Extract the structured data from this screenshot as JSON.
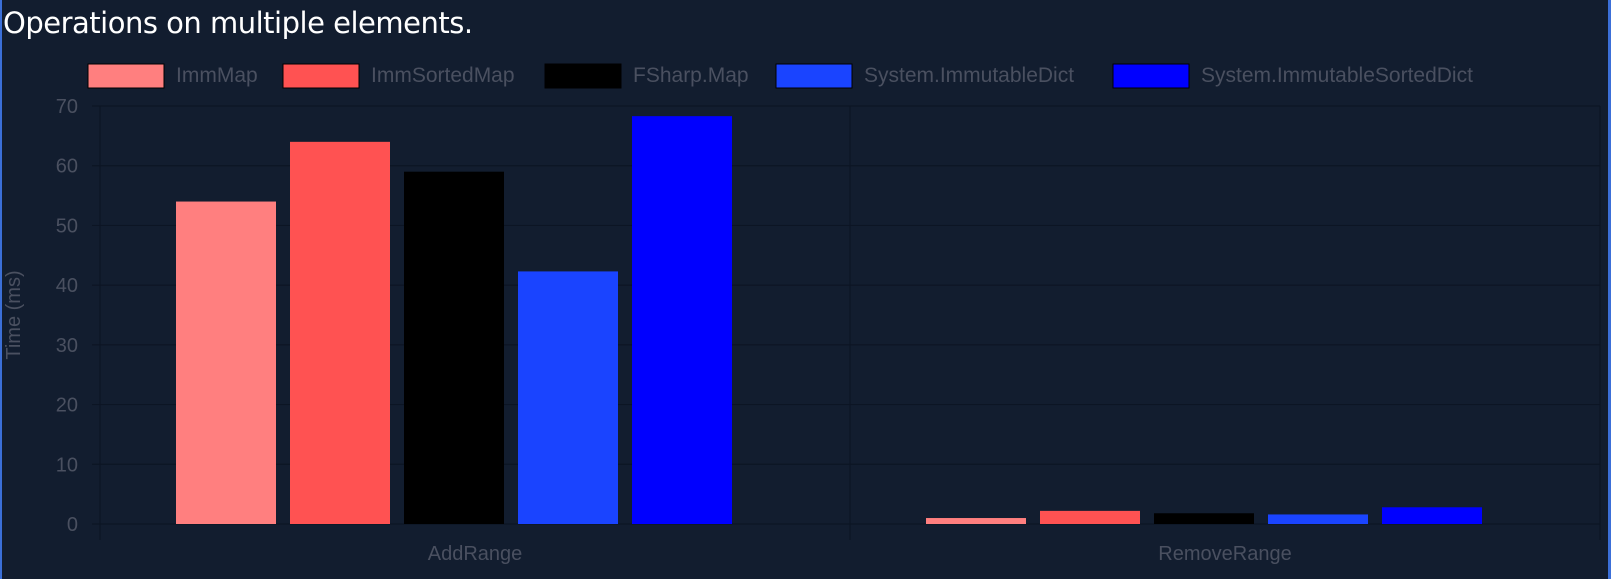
{
  "title": "Operations on multiple elements.",
  "chart_data": {
    "type": "bar",
    "categories": [
      "AddRange",
      "RemoveRange"
    ],
    "ylabel": "Time (ms)",
    "ylim": [
      0,
      70
    ],
    "yticks": [
      0,
      10,
      20,
      30,
      40,
      50,
      60,
      70
    ],
    "grid": true,
    "legend_position": "top",
    "series": [
      {
        "name": "ImmMap",
        "color": "#ff7f7f",
        "values": [
          54,
          1
        ]
      },
      {
        "name": "ImmSortedMap",
        "color": "#ff5252",
        "values": [
          64,
          2.2
        ]
      },
      {
        "name": "FSharp.Map",
        "color": "#000000",
        "values": [
          59,
          1.8
        ]
      },
      {
        "name": "System.ImmutableDict",
        "color": "#1a44ff",
        "values": [
          42.3,
          1.6
        ]
      },
      {
        "name": "System.ImmutableSortedDict",
        "color": "#0000ff",
        "values": [
          68.3,
          2.8
        ]
      }
    ]
  }
}
